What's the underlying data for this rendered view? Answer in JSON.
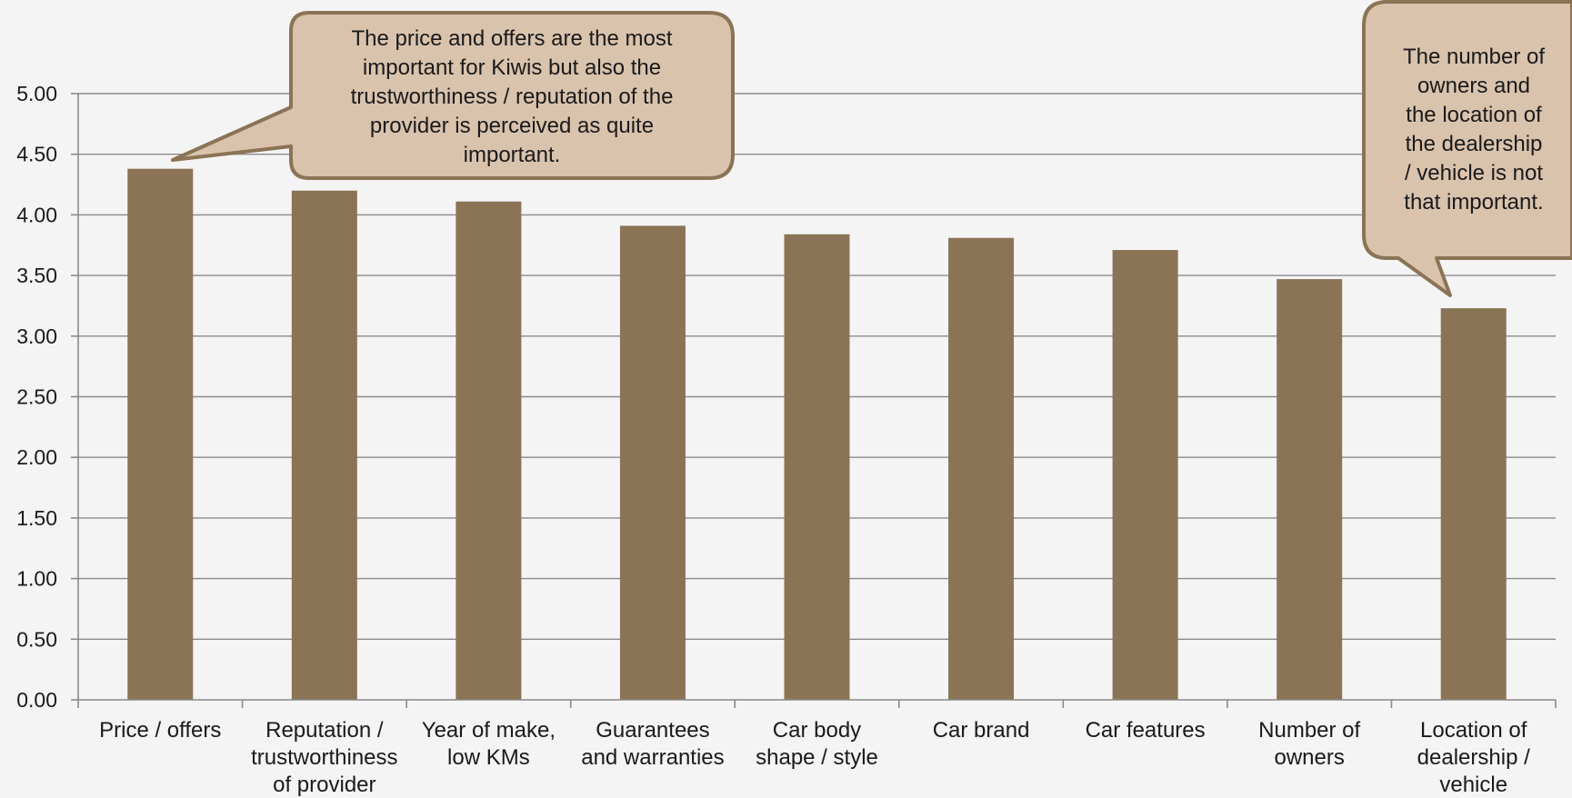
{
  "colors": {
    "background": "#f4f4f4",
    "bar": "#8b7355",
    "gridline": "#8a8a8a",
    "callout_fill": "#d9c3ad",
    "callout_border": "#8b7355"
  },
  "chart_data": {
    "type": "bar",
    "title": "",
    "xlabel": "",
    "ylabel": "",
    "ylim": [
      0,
      5
    ],
    "y_ticks": [
      "0.00",
      "0.50",
      "1.00",
      "1.50",
      "2.00",
      "2.50",
      "3.00",
      "3.50",
      "4.00",
      "4.50",
      "5.00"
    ],
    "grid": true,
    "legend": "none",
    "categories": [
      [
        "Price / offers"
      ],
      [
        "Reputation /",
        "trustworthiness",
        "of provider"
      ],
      [
        "Year of make,",
        "low KMs"
      ],
      [
        "Guarantees",
        "and warranties"
      ],
      [
        "Car body",
        "shape / style"
      ],
      [
        "Car brand"
      ],
      [
        "Car features"
      ],
      [
        "Number of",
        "owners"
      ],
      [
        "Location of",
        "dealership /",
        "vehicle"
      ]
    ],
    "values": [
      4.38,
      4.2,
      4.11,
      3.91,
      3.84,
      3.81,
      3.71,
      3.47,
      3.23
    ],
    "annotations": [
      {
        "name": "callout-price-reputation",
        "points_to_category": 0,
        "lines": [
          "The price and offers are the most",
          "important for Kiwis but also the",
          "trustworthiness / reputation of the",
          "provider is perceived as quite",
          "important."
        ]
      },
      {
        "name": "callout-owners-location",
        "points_to_category": 8,
        "lines": [
          "The number of",
          "owners and",
          "the location of",
          "the dealership",
          "/ vehicle is not",
          "that important."
        ]
      }
    ]
  }
}
